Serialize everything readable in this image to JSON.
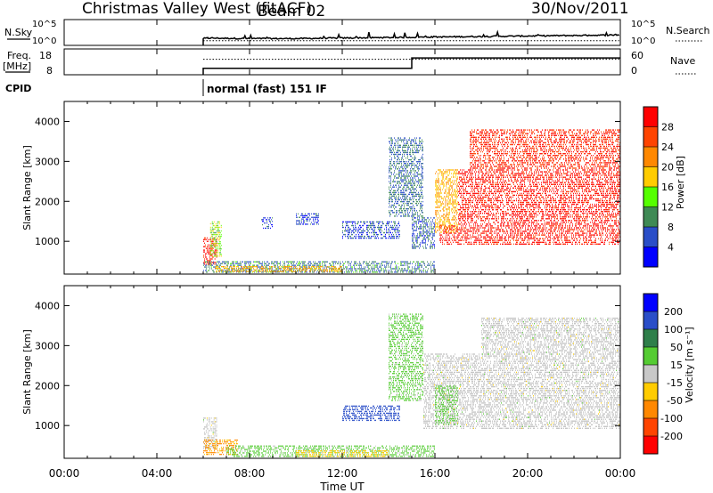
{
  "header": {
    "title": "Christmas Valley West (fitACF)",
    "beam": "Beam 02",
    "date": "30/Nov/2011"
  },
  "colors": {
    "power_scale": [
      "#0000ff",
      "#2a4ec8",
      "#3f8a55",
      "#55ff00",
      "#ffcc00",
      "#ff8800",
      "#ff4400",
      "#ff0000"
    ],
    "velocity_scale": [
      "#ff0000",
      "#ff4400",
      "#ff8800",
      "#ffcc00",
      "#c8c8c8",
      "#55cc33",
      "#2f7f4a",
      "#2a4ec8",
      "#0000ff"
    ],
    "ground_scatter": "#c0c0c0"
  },
  "chart_data": [
    {
      "type": "line",
      "panel": "nsky",
      "ylabel": "N.Sky",
      "right_label": "N.Search",
      "y_ticks": [
        "10^5",
        "10^0"
      ],
      "right_ticks": [
        "10^5",
        "10^0"
      ],
      "x": [
        6.0,
        6.2,
        8.0,
        10.0,
        12.0,
        14.0,
        16.0,
        18.0,
        20.0,
        22.0,
        24.0
      ],
      "series": [
        {
          "values": [
            1.2,
            1.3,
            1.2,
            1.2,
            1.3,
            1.4,
            1.5,
            1.6,
            1.7,
            1.8,
            1.9
          ]
        },
        {
          "values": [
            0.9,
            0.9,
            0.9,
            0.9,
            0.9,
            0.9,
            0.9,
            0.9,
            0.9,
            0.9,
            0.9
          ]
        }
      ],
      "ylim": [
        0,
        5
      ],
      "xlim": [
        0,
        24
      ]
    },
    {
      "type": "line",
      "panel": "freq",
      "ylabel": "Freq.",
      "yunit": "[MHz]",
      "right_label": "Nave",
      "y_ticks": [
        18,
        8
      ],
      "right_ticks": [
        60,
        0
      ],
      "series": [
        {
          "x": [
            6.0,
            15.0,
            15.0,
            24.0
          ],
          "values": [
            10.5,
            10.5,
            14.5,
            14.5
          ]
        },
        {
          "x": [
            6.0,
            24.0
          ],
          "values": [
            14,
            14
          ]
        }
      ],
      "ylim": [
        8,
        18
      ],
      "right_ylim": [
        0,
        60
      ],
      "xlim": [
        0,
        24
      ]
    },
    {
      "type": "heatmap",
      "panel": "cpid",
      "ylabel": "CPID",
      "segments": [
        {
          "start": 6.0,
          "end": 24.0,
          "label": "normal (fast) 151 IF"
        }
      ]
    },
    {
      "type": "heatmap",
      "panel": "power",
      "ylabel": "Slant Range [km]",
      "y_ticks": [
        1000,
        2000,
        3000,
        4000
      ],
      "ylim": [
        180,
        4500
      ],
      "xlim": [
        0,
        24
      ],
      "colorbar": {
        "label": "Power [dB]",
        "ticks": [
          4,
          8,
          12,
          16,
          20,
          24,
          28
        ],
        "min": 0,
        "max": 32
      },
      "regions": [
        {
          "t0": 6.0,
          "t1": 6.6,
          "r0": 400,
          "r1": 1100,
          "value": 30
        },
        {
          "t0": 6.3,
          "t1": 6.8,
          "r0": 600,
          "r1": 1500,
          "value": 15
        },
        {
          "t0": 6.0,
          "t1": 16.0,
          "r0": 200,
          "r1": 500,
          "value": 9
        },
        {
          "t0": 6.5,
          "t1": 12.0,
          "r0": 220,
          "r1": 380,
          "value": 20
        },
        {
          "t0": 12.0,
          "t1": 14.5,
          "r0": 1050,
          "r1": 1500,
          "value": 6
        },
        {
          "t0": 14.0,
          "t1": 15.5,
          "r0": 1600,
          "r1": 3600,
          "value": 8
        },
        {
          "t0": 15.0,
          "t1": 16.0,
          "r0": 800,
          "r1": 1600,
          "value": 7
        },
        {
          "t0": 16.0,
          "t1": 17.0,
          "r0": 1200,
          "r1": 2800,
          "value": 20
        },
        {
          "t0": 16.2,
          "t1": 24.0,
          "r0": 900,
          "r1": 1400,
          "value": 30
        },
        {
          "t0": 17.0,
          "t1": 24.0,
          "r0": 1400,
          "r1": 2800,
          "value": 30
        },
        {
          "t0": 17.5,
          "t1": 24.0,
          "r0": 2800,
          "r1": 3800,
          "value": 28
        },
        {
          "t0": 10.0,
          "t1": 11.0,
          "r0": 1400,
          "r1": 1700,
          "value": 5
        },
        {
          "t0": 8.5,
          "t1": 9.0,
          "r0": 1300,
          "r1": 1600,
          "value": 5
        }
      ]
    },
    {
      "type": "heatmap",
      "panel": "velocity",
      "ylabel": "Slant Range [km]",
      "y_ticks": [
        1000,
        2000,
        3000,
        4000
      ],
      "ylim": [
        180,
        4500
      ],
      "xlim": [
        0,
        24
      ],
      "xlabel": "Time UT",
      "x_ticks": [
        "00:00",
        "04:00",
        "08:00",
        "12:00",
        "16:00",
        "20:00",
        "00:00"
      ],
      "colorbar": {
        "label": "Velocity [m s⁻¹]",
        "ticks": [
          200,
          100,
          50,
          15,
          -15,
          -50,
          -100,
          -200
        ]
      },
      "regions": [
        {
          "t0": 6.0,
          "t1": 6.6,
          "r0": 400,
          "r1": 1200,
          "value": "gs"
        },
        {
          "t0": 6.0,
          "t1": 7.5,
          "r0": 250,
          "r1": 650,
          "value": -60
        },
        {
          "t0": 7.0,
          "t1": 16.0,
          "r0": 200,
          "r1": 500,
          "value": 30
        },
        {
          "t0": 10.0,
          "t1": 14.0,
          "r0": 200,
          "r1": 380,
          "value": -30
        },
        {
          "t0": 12.0,
          "t1": 14.5,
          "r0": 1100,
          "r1": 1500,
          "value": 120
        },
        {
          "t0": 14.0,
          "t1": 15.5,
          "r0": 1600,
          "r1": 3800,
          "value": 30
        },
        {
          "t0": 15.5,
          "t1": 24.0,
          "r0": 900,
          "r1": 2800,
          "value": "gs"
        },
        {
          "t0": 18.0,
          "t1": 24.0,
          "r0": 2800,
          "r1": 3700,
          "value": "gs"
        },
        {
          "t0": 16.0,
          "t1": 17.0,
          "r0": 1000,
          "r1": 2000,
          "value": 30
        }
      ]
    }
  ]
}
